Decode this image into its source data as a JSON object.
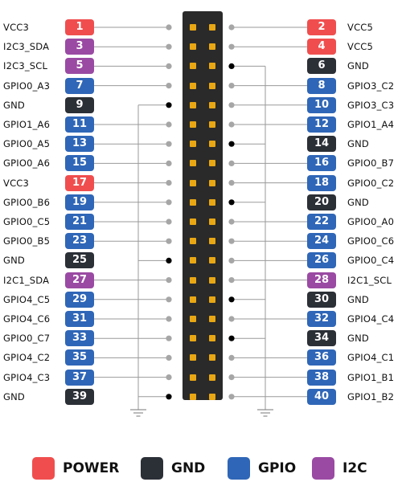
{
  "colors": {
    "power": "#f04e4e",
    "gnd": "#2b2f36",
    "gpio": "#2f66b7",
    "i2c": "#9a4aa3",
    "header": "#2a2a2a",
    "pin": "#e8a713",
    "line": "#9a9a9a",
    "dot_open": "#a6a6a6",
    "dot_gnd": "#000000"
  },
  "rows": [
    {
      "left": {
        "num": "1",
        "label": "VCC3",
        "type": "power"
      },
      "right": {
        "num": "2",
        "label": "VCC5",
        "type": "power"
      }
    },
    {
      "left": {
        "num": "3",
        "label": "I2C3_SDA",
        "type": "i2c"
      },
      "right": {
        "num": "4",
        "label": "VCC5",
        "type": "power"
      }
    },
    {
      "left": {
        "num": "5",
        "label": "I2C3_SCL",
        "type": "i2c"
      },
      "right": {
        "num": "6",
        "label": "GND",
        "type": "gnd"
      }
    },
    {
      "left": {
        "num": "7",
        "label": "GPIO0_A3",
        "type": "gpio"
      },
      "right": {
        "num": "8",
        "label": "GPIO3_C2",
        "type": "gpio"
      }
    },
    {
      "left": {
        "num": "9",
        "label": "GND",
        "type": "gnd"
      },
      "right": {
        "num": "10",
        "label": "GPIO3_C3",
        "type": "gpio"
      }
    },
    {
      "left": {
        "num": "11",
        "label": "GPIO1_A6",
        "type": "gpio"
      },
      "right": {
        "num": "12",
        "label": "GPIO1_A4",
        "type": "gpio"
      }
    },
    {
      "left": {
        "num": "13",
        "label": "GPIO0_A5",
        "type": "gpio"
      },
      "right": {
        "num": "14",
        "label": "GND",
        "type": "gnd"
      }
    },
    {
      "left": {
        "num": "15",
        "label": "GPIO0_A6",
        "type": "gpio"
      },
      "right": {
        "num": "16",
        "label": "GPIO0_B7",
        "type": "gpio"
      }
    },
    {
      "left": {
        "num": "17",
        "label": "VCC3",
        "type": "power"
      },
      "right": {
        "num": "18",
        "label": "GPIO0_C2",
        "type": "gpio"
      }
    },
    {
      "left": {
        "num": "19",
        "label": "GPIO0_B6",
        "type": "gpio"
      },
      "right": {
        "num": "20",
        "label": "GND",
        "type": "gnd"
      }
    },
    {
      "left": {
        "num": "21",
        "label": "GPIO0_C5",
        "type": "gpio"
      },
      "right": {
        "num": "22",
        "label": "GPIO0_A0",
        "type": "gpio"
      }
    },
    {
      "left": {
        "num": "23",
        "label": "GPIO0_B5",
        "type": "gpio"
      },
      "right": {
        "num": "24",
        "label": "GPIO0_C6",
        "type": "gpio"
      }
    },
    {
      "left": {
        "num": "25",
        "label": "GND",
        "type": "gnd"
      },
      "right": {
        "num": "26",
        "label": "GPIO0_C4",
        "type": "gpio"
      }
    },
    {
      "left": {
        "num": "27",
        "label": "I2C1_SDA",
        "type": "i2c"
      },
      "right": {
        "num": "28",
        "label": "I2C1_SCL",
        "type": "i2c"
      }
    },
    {
      "left": {
        "num": "29",
        "label": "GPIO4_C5",
        "type": "gpio"
      },
      "right": {
        "num": "30",
        "label": "GND",
        "type": "gnd"
      }
    },
    {
      "left": {
        "num": "31",
        "label": "GPIO4_C6",
        "type": "gpio"
      },
      "right": {
        "num": "32",
        "label": "GPIO4_C4",
        "type": "gpio"
      }
    },
    {
      "left": {
        "num": "33",
        "label": "GPIO0_C7",
        "type": "gpio"
      },
      "right": {
        "num": "34",
        "label": "GND",
        "type": "gnd"
      }
    },
    {
      "left": {
        "num": "35",
        "label": "GPIO4_C2",
        "type": "gpio"
      },
      "right": {
        "num": "36",
        "label": "GPIO4_C1",
        "type": "gpio"
      }
    },
    {
      "left": {
        "num": "37",
        "label": "GPIO4_C3",
        "type": "gpio"
      },
      "right": {
        "num": "38",
        "label": "GPIO1_B1",
        "type": "gpio"
      }
    },
    {
      "left": {
        "num": "39",
        "label": "GND",
        "type": "gnd"
      },
      "right": {
        "num": "40",
        "label": "GPIO1_B2",
        "type": "gpio"
      }
    }
  ],
  "legend": [
    {
      "type": "power",
      "label": "POWER"
    },
    {
      "type": "gnd",
      "label": "GND"
    },
    {
      "type": "gpio",
      "label": "GPIO"
    },
    {
      "type": "i2c",
      "label": "I2C"
    }
  ]
}
